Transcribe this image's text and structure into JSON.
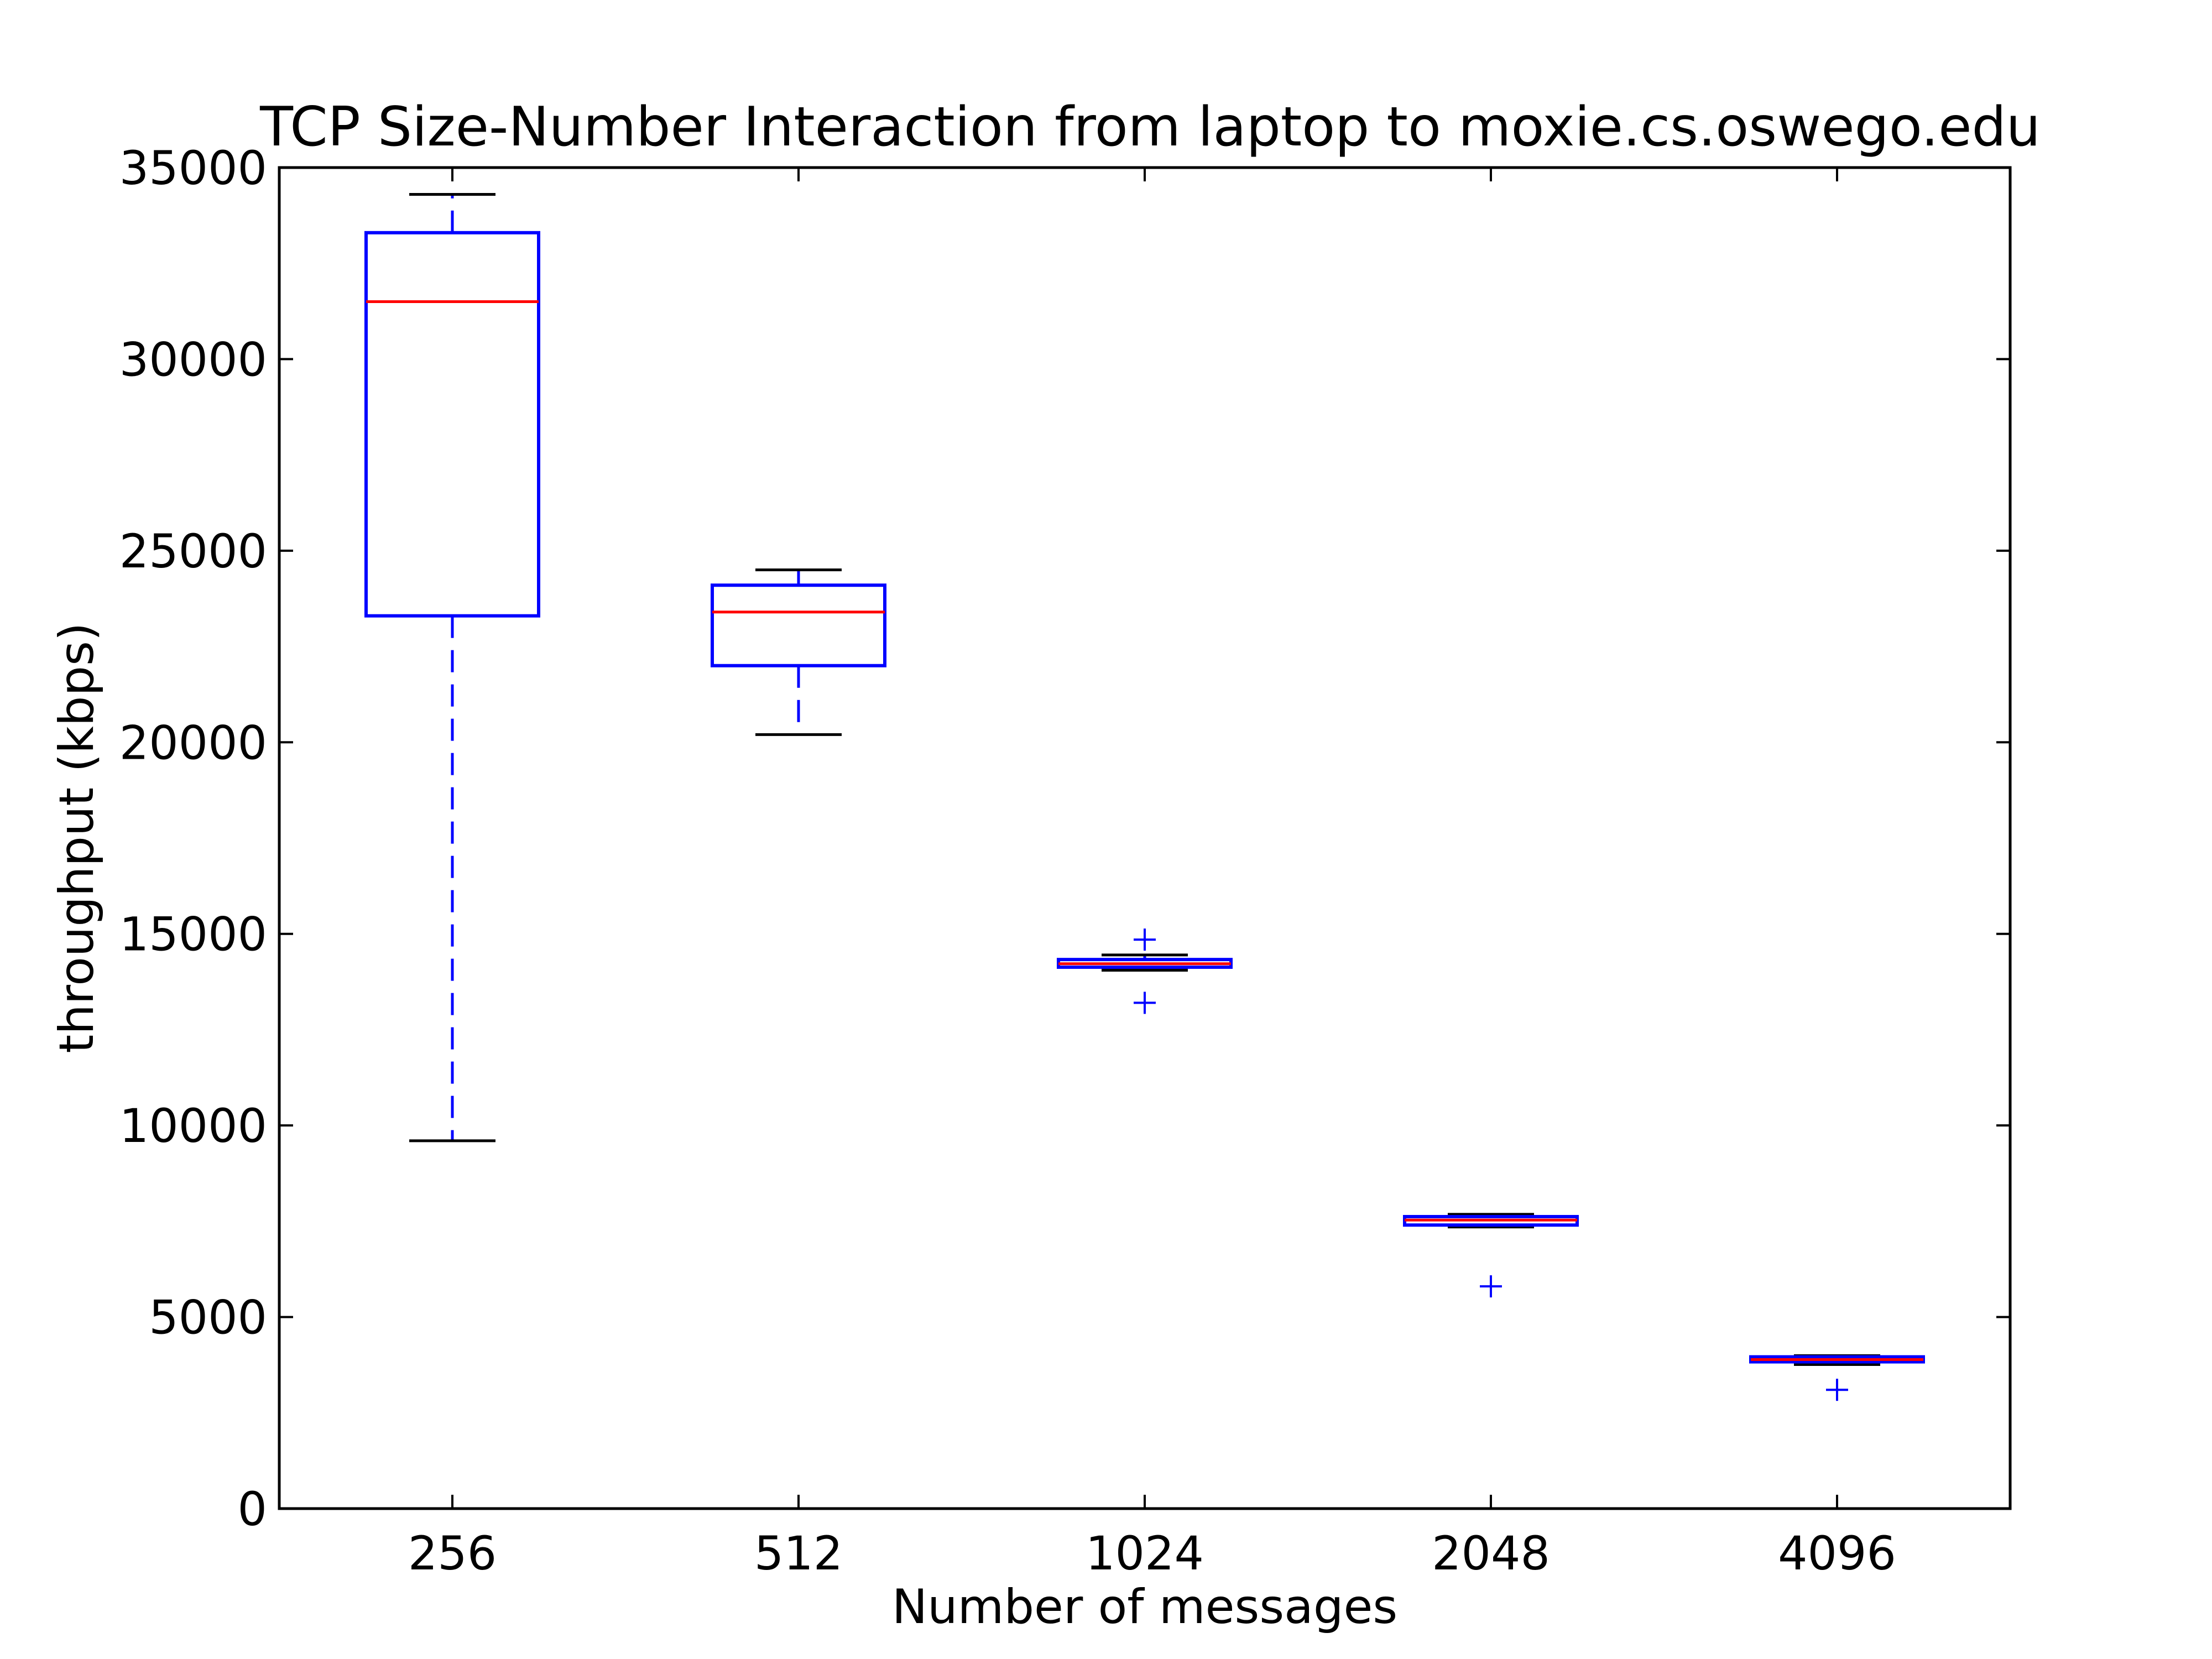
{
  "chart_data": {
    "type": "box",
    "title": "TCP Size-Number Interaction from laptop to moxie.cs.oswego.edu",
    "xlabel": "Number of messages",
    "ylabel": "throughput (kbps)",
    "ylim": [
      0,
      35000
    ],
    "yticks": [
      "0",
      "5000",
      "10000",
      "15000",
      "20000",
      "25000",
      "30000",
      "35000"
    ],
    "categories": [
      "256",
      "512",
      "1024",
      "2048",
      "4096"
    ],
    "boxes": [
      {
        "category": "256",
        "whisker_low": 9600,
        "q1": 23300,
        "median": 31500,
        "q3": 33300,
        "whisker_high": 34300,
        "outliers": []
      },
      {
        "category": "512",
        "whisker_low": 20200,
        "q1": 22000,
        "median": 23400,
        "q3": 24100,
        "whisker_high": 24500,
        "outliers": []
      },
      {
        "category": "1024",
        "whisker_low": 14050,
        "q1": 14130,
        "median": 14220,
        "q3": 14330,
        "whisker_high": 14450,
        "outliers": [
          13200,
          14850
        ]
      },
      {
        "category": "2048",
        "whisker_low": 7350,
        "q1": 7400,
        "median": 7530,
        "q3": 7620,
        "whisker_high": 7680,
        "outliers": [
          5800
        ]
      },
      {
        "category": "4096",
        "whisker_low": 3760,
        "q1": 3830,
        "median": 3890,
        "q3": 3960,
        "whisker_high": 3990,
        "outliers": [
          3100
        ]
      }
    ],
    "grid": false,
    "colors": {
      "box": "#0000ff",
      "median": "#ff0000",
      "whisker_cap": "#000000",
      "outlier": "#0000ff"
    }
  }
}
